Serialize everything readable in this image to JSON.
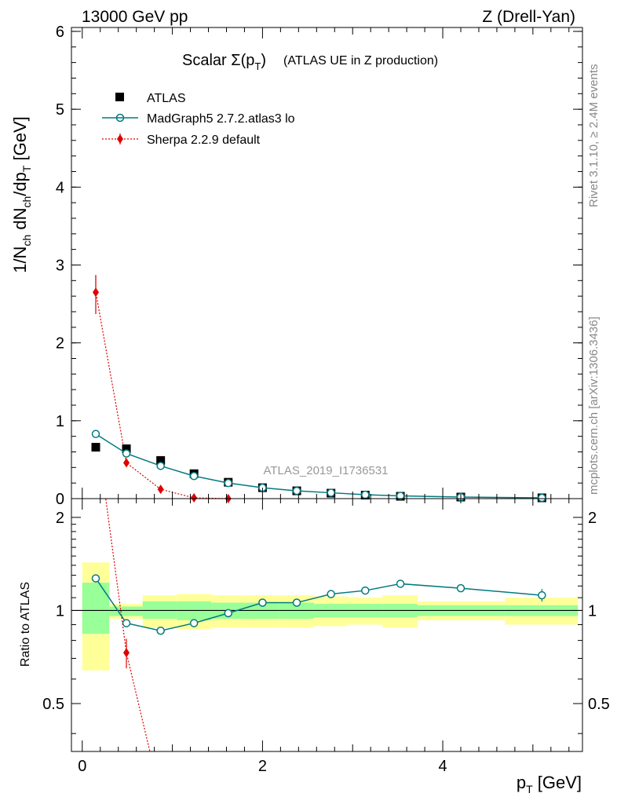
{
  "header": {
    "energy": "13000 GeV pp",
    "process": "Z (Drell-Yan)"
  },
  "side_labels": {
    "rivet": "Rivet 3.1.10, ≥ 2.4M events",
    "mcplots": "mcplots.cern.ch [arXiv:1306.3436]"
  },
  "colors": {
    "data": "#000000",
    "madgraph": "#007a80",
    "sherpa": "#e00000",
    "band_inner": "#99ff99",
    "band_outer": "#ffff99"
  },
  "chart_data": [
    {
      "type": "line",
      "title_prefix": "Scalar Σ(p",
      "title_sub": "T",
      "title_suffix": ")",
      "title_note": "(ATLAS UE in Z production)",
      "ylabel": "1/N_ch dN_ch/dp_T [GeV]",
      "analysis_id": "ATLAS_2019_I1736531",
      "xlim": [
        -0.12,
        5.55
      ],
      "ylim": [
        0,
        6.05
      ],
      "yticks": [
        0,
        1,
        2,
        3,
        4,
        5,
        6
      ],
      "ytick_labels": [
        "0",
        "1",
        "2",
        "3",
        "4",
        "5",
        "6"
      ],
      "legend": [
        "ATLAS",
        "MadGraph5 2.7.2.atlas3 lo",
        "Sherpa 2.2.9 default"
      ],
      "series": [
        {
          "name": "ATLAS",
          "x": [
            0.15,
            0.49,
            0.87,
            1.24,
            1.62,
            2.0,
            2.38,
            2.76,
            3.14,
            3.53,
            4.2,
            5.1
          ],
          "values": [
            0.66,
            0.64,
            0.49,
            0.32,
            0.21,
            0.14,
            0.1,
            0.07,
            0.045,
            0.03,
            0.02,
            0.01
          ]
        },
        {
          "name": "MadGraph5 2.7.2.atlas3 lo",
          "x": [
            0.15,
            0.49,
            0.87,
            1.24,
            1.62,
            2.0,
            2.38,
            2.76,
            3.14,
            3.53,
            4.2,
            5.1
          ],
          "values": [
            0.83,
            0.58,
            0.42,
            0.29,
            0.2,
            0.14,
            0.1,
            0.075,
            0.05,
            0.035,
            0.02,
            0.01
          ]
        },
        {
          "name": "Sherpa 2.2.9 default",
          "x": [
            0.15,
            0.49,
            0.87,
            1.24,
            1.62
          ],
          "values": [
            2.65,
            0.46,
            0.12,
            0.01,
            0.0
          ],
          "err_low": [
            0.28,
            0.05,
            0.02,
            0.0,
            0.0
          ],
          "err_high": [
            0.22,
            0.05,
            0.02,
            0.0,
            0.0
          ]
        }
      ]
    },
    {
      "type": "line",
      "ylabel": "Ratio to ATLAS",
      "xlabel_main": "p",
      "xlabel_sub": "T",
      "xlabel_unit": " [GeV]",
      "xlim": [
        -0.12,
        5.55
      ],
      "ylim": [
        0.35,
        2.3
      ],
      "yticks": [
        0.5,
        1,
        2
      ],
      "ytick_labels": [
        "0.5",
        "1",
        "2"
      ],
      "xticks": [
        0,
        2,
        4
      ],
      "xtick_labels": [
        "0",
        "2",
        "4"
      ],
      "bins": [
        {
          "lo": 0.0,
          "hi": 0.3,
          "inner": [
            0.84,
            1.23
          ],
          "outer": [
            0.64,
            1.43
          ]
        },
        {
          "lo": 0.3,
          "hi": 0.67,
          "inner": [
            0.96,
            1.03
          ],
          "outer": [
            0.94,
            1.05
          ]
        },
        {
          "lo": 0.67,
          "hi": 1.05,
          "inner": [
            0.94,
            1.07
          ],
          "outer": [
            0.88,
            1.12
          ]
        },
        {
          "lo": 1.05,
          "hi": 1.43,
          "inner": [
            0.93,
            1.07
          ],
          "outer": [
            0.87,
            1.13
          ]
        },
        {
          "lo": 1.43,
          "hi": 1.81,
          "inner": [
            0.94,
            1.06
          ],
          "outer": [
            0.88,
            1.12
          ]
        },
        {
          "lo": 1.81,
          "hi": 2.19,
          "inner": [
            0.94,
            1.06
          ],
          "outer": [
            0.88,
            1.12
          ]
        },
        {
          "lo": 2.19,
          "hi": 2.57,
          "inner": [
            0.94,
            1.06
          ],
          "outer": [
            0.88,
            1.12
          ]
        },
        {
          "lo": 2.57,
          "hi": 2.95,
          "inner": [
            0.95,
            1.05
          ],
          "outer": [
            0.89,
            1.11
          ]
        },
        {
          "lo": 2.95,
          "hi": 3.33,
          "inner": [
            0.95,
            1.05
          ],
          "outer": [
            0.9,
            1.1
          ]
        },
        {
          "lo": 3.33,
          "hi": 3.72,
          "inner": [
            0.95,
            1.05
          ],
          "outer": [
            0.88,
            1.12
          ]
        },
        {
          "lo": 3.72,
          "hi": 4.69,
          "inner": [
            0.96,
            1.04
          ],
          "outer": [
            0.93,
            1.07
          ]
        },
        {
          "lo": 4.69,
          "hi": 5.5,
          "inner": [
            0.96,
            1.04
          ],
          "outer": [
            0.9,
            1.1
          ]
        }
      ],
      "series": [
        {
          "name": "MadGraph5 2.7.2.atlas3 lo",
          "x": [
            0.15,
            0.49,
            0.87,
            1.24,
            1.62,
            2.0,
            2.38,
            2.76,
            3.14,
            3.53,
            4.2,
            5.1
          ],
          "values": [
            1.27,
            0.91,
            0.86,
            0.91,
            0.98,
            1.06,
            1.06,
            1.13,
            1.16,
            1.22,
            1.18,
            1.12
          ]
        },
        {
          "name": "Sherpa 2.2.9 default",
          "x": [
            0.15,
            0.49,
            0.87
          ],
          "values": [
            4.0,
            0.73,
            0.25
          ],
          "err_low": [
            0.3,
            0.08,
            0.02
          ],
          "err_high": [
            0.3,
            0.08,
            0.02
          ]
        }
      ]
    }
  ]
}
